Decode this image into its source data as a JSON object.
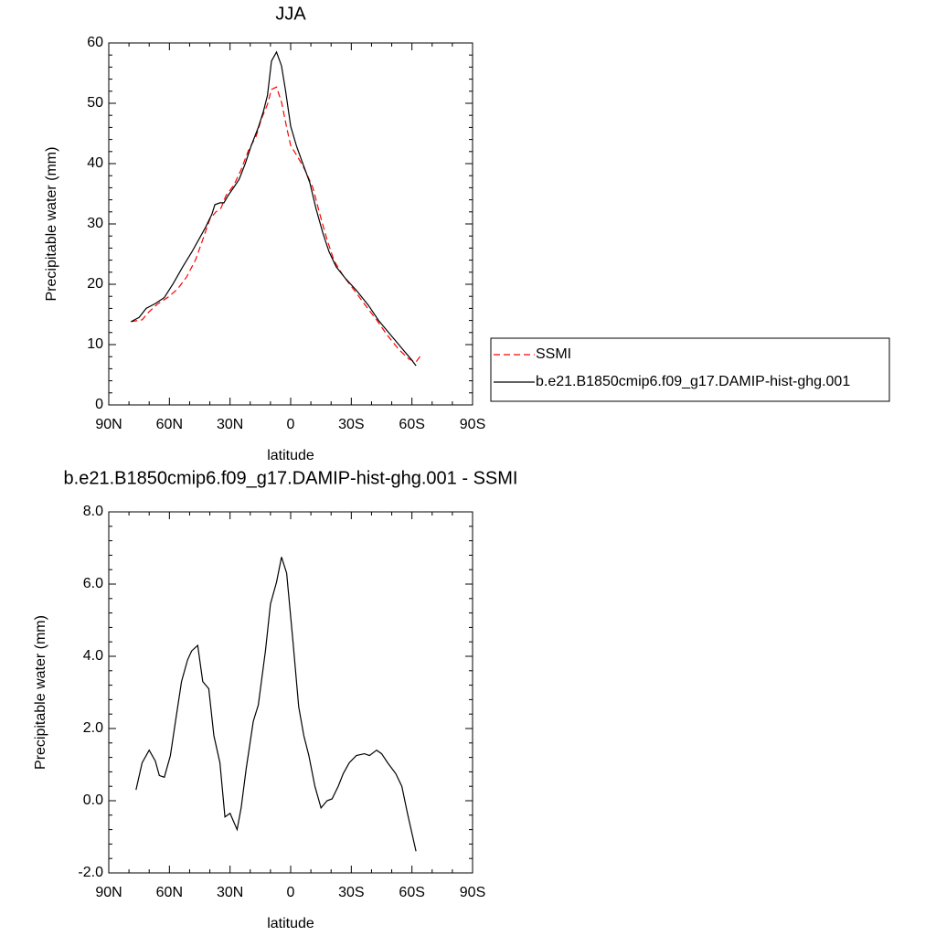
{
  "chart_data": [
    {
      "type": "line",
      "title": "JJA",
      "x_label": "latitude",
      "y_label": "Precipitable water (mm)",
      "xlim": [
        90,
        -90
      ],
      "xticks": [
        {
          "value": 90,
          "label": "90N"
        },
        {
          "value": 60,
          "label": "60N"
        },
        {
          "value": 30,
          "label": "30N"
        },
        0,
        {
          "value": -30,
          "label": "30S"
        },
        {
          "value": -60,
          "label": "60S"
        },
        {
          "value": -90,
          "label": "90S"
        }
      ],
      "ylim": [
        0,
        60
      ],
      "yticks": [
        0,
        10,
        20,
        30,
        40,
        50,
        60
      ],
      "legend": "right",
      "series": [
        {
          "name": "SSMI",
          "color": "#ff0000",
          "dashed": true,
          "x": [
            79,
            73.5,
            70.5,
            66,
            60.5,
            56,
            51.5,
            47,
            43.5,
            40,
            37,
            34.5,
            32,
            28,
            24.5,
            21,
            17,
            14.5,
            11.5,
            9.5,
            7,
            4.5,
            2,
            0,
            -3.5,
            -7,
            -11,
            -14.5,
            -18,
            -21.5,
            -26,
            -31.5,
            -37,
            -42.5,
            -47.5,
            -53.5,
            -58.5,
            -62,
            -65
          ],
          "values": [
            13.8,
            14.1,
            15.3,
            16.7,
            17.9,
            19.2,
            21.2,
            24.1,
            27.4,
            30.8,
            32,
            32.6,
            34.7,
            36.5,
            39,
            42.1,
            44.6,
            47.4,
            49.8,
            52.3,
            52.7,
            50.2,
            46,
            43,
            41.1,
            39,
            36,
            31.5,
            27.4,
            23.9,
            21.4,
            19,
            16.5,
            14.1,
            11.7,
            9.2,
            7.6,
            7.1,
            8.5
          ]
        },
        {
          "name": "b.e21.B1850cmip6.f09_g17.DAMIP-hist-ghg.001",
          "color": "#000000",
          "dashed": false,
          "x": [
            79,
            75,
            71.5,
            67,
            62.5,
            58,
            53.4,
            49,
            45,
            42,
            39,
            37.5,
            35,
            33,
            31,
            28.5,
            25.5,
            22.5,
            19.5,
            16,
            13.5,
            11.5,
            9.5,
            7,
            4.5,
            2.5,
            0,
            -3,
            -6,
            -9.5,
            -12.5,
            -16,
            -19,
            -22.5,
            -27,
            -32.5,
            -38.5,
            -43.5,
            -49,
            -55,
            -59.5,
            -62
          ],
          "values": [
            13.8,
            14.5,
            16,
            16.8,
            17.8,
            20.2,
            22.9,
            25.3,
            27.7,
            29.5,
            31.6,
            33.2,
            33.5,
            33.5,
            34.7,
            35.9,
            37.4,
            40,
            43,
            46,
            48.6,
            51.3,
            57,
            58.5,
            56.2,
            52,
            46.2,
            42.8,
            40,
            36.8,
            32.6,
            28.4,
            25.4,
            22.9,
            21,
            19,
            16.5,
            14,
            11.8,
            9.4,
            7.6,
            6.5
          ]
        }
      ]
    },
    {
      "type": "line",
      "title": "b.e21.B1850cmip6.f09_g17.DAMIP-hist-ghg.001 - SSMI",
      "x_label": "latitude",
      "y_label": "Precipitable water (mm)",
      "xlim": [
        90,
        -90
      ],
      "xticks": [
        {
          "value": 90,
          "label": "90N"
        },
        {
          "value": 60,
          "label": "60N"
        },
        {
          "value": 30,
          "label": "30N"
        },
        0,
        {
          "value": -30,
          "label": "30S"
        },
        {
          "value": -60,
          "label": "60S"
        },
        {
          "value": -90,
          "label": "90S"
        }
      ],
      "ylim": [
        -2,
        8
      ],
      "yticks": [
        {
          "value": -2,
          "label": "-2.0"
        },
        {
          "value": 0,
          "label": "0.0"
        },
        {
          "value": 2,
          "label": "2.0"
        },
        {
          "value": 4,
          "label": "4.0"
        },
        {
          "value": 6,
          "label": "6.0"
        },
        {
          "value": 8,
          "label": "8.0"
        }
      ],
      "color": "#000000",
      "x": [
        76.5,
        73.5,
        70,
        67,
        65,
        62.5,
        59.5,
        57,
        54,
        51,
        49,
        46,
        43.5,
        40.5,
        38,
        35,
        32.5,
        30,
        26.5,
        24.5,
        22,
        18.5,
        16,
        12.5,
        10,
        7,
        4.5,
        2,
        -1,
        -4,
        -6.5,
        -9,
        -12,
        -15,
        -18,
        -20.5,
        -23.5,
        -26,
        -29,
        -32.5,
        -36.5,
        -39,
        -42.5,
        -45,
        -48,
        -52,
        -55,
        -58,
        -62
      ],
      "values": [
        0.3,
        1.05,
        1.4,
        1.1,
        0.7,
        0.65,
        1.25,
        2.2,
        3.3,
        3.9,
        4.15,
        4.3,
        3.3,
        3.1,
        1.8,
        1.05,
        -0.45,
        -0.35,
        -0.8,
        -0.2,
        0.9,
        2.2,
        2.65,
        4.15,
        5.45,
        6.05,
        6.75,
        6.3,
        4.5,
        2.6,
        1.8,
        1.25,
        0.4,
        -0.2,
        0,
        0.05,
        0.4,
        0.75,
        1.05,
        1.25,
        1.3,
        1.25,
        1.4,
        1.3,
        1.05,
        0.75,
        0.4,
        -0.4,
        -1.4
      ]
    }
  ]
}
